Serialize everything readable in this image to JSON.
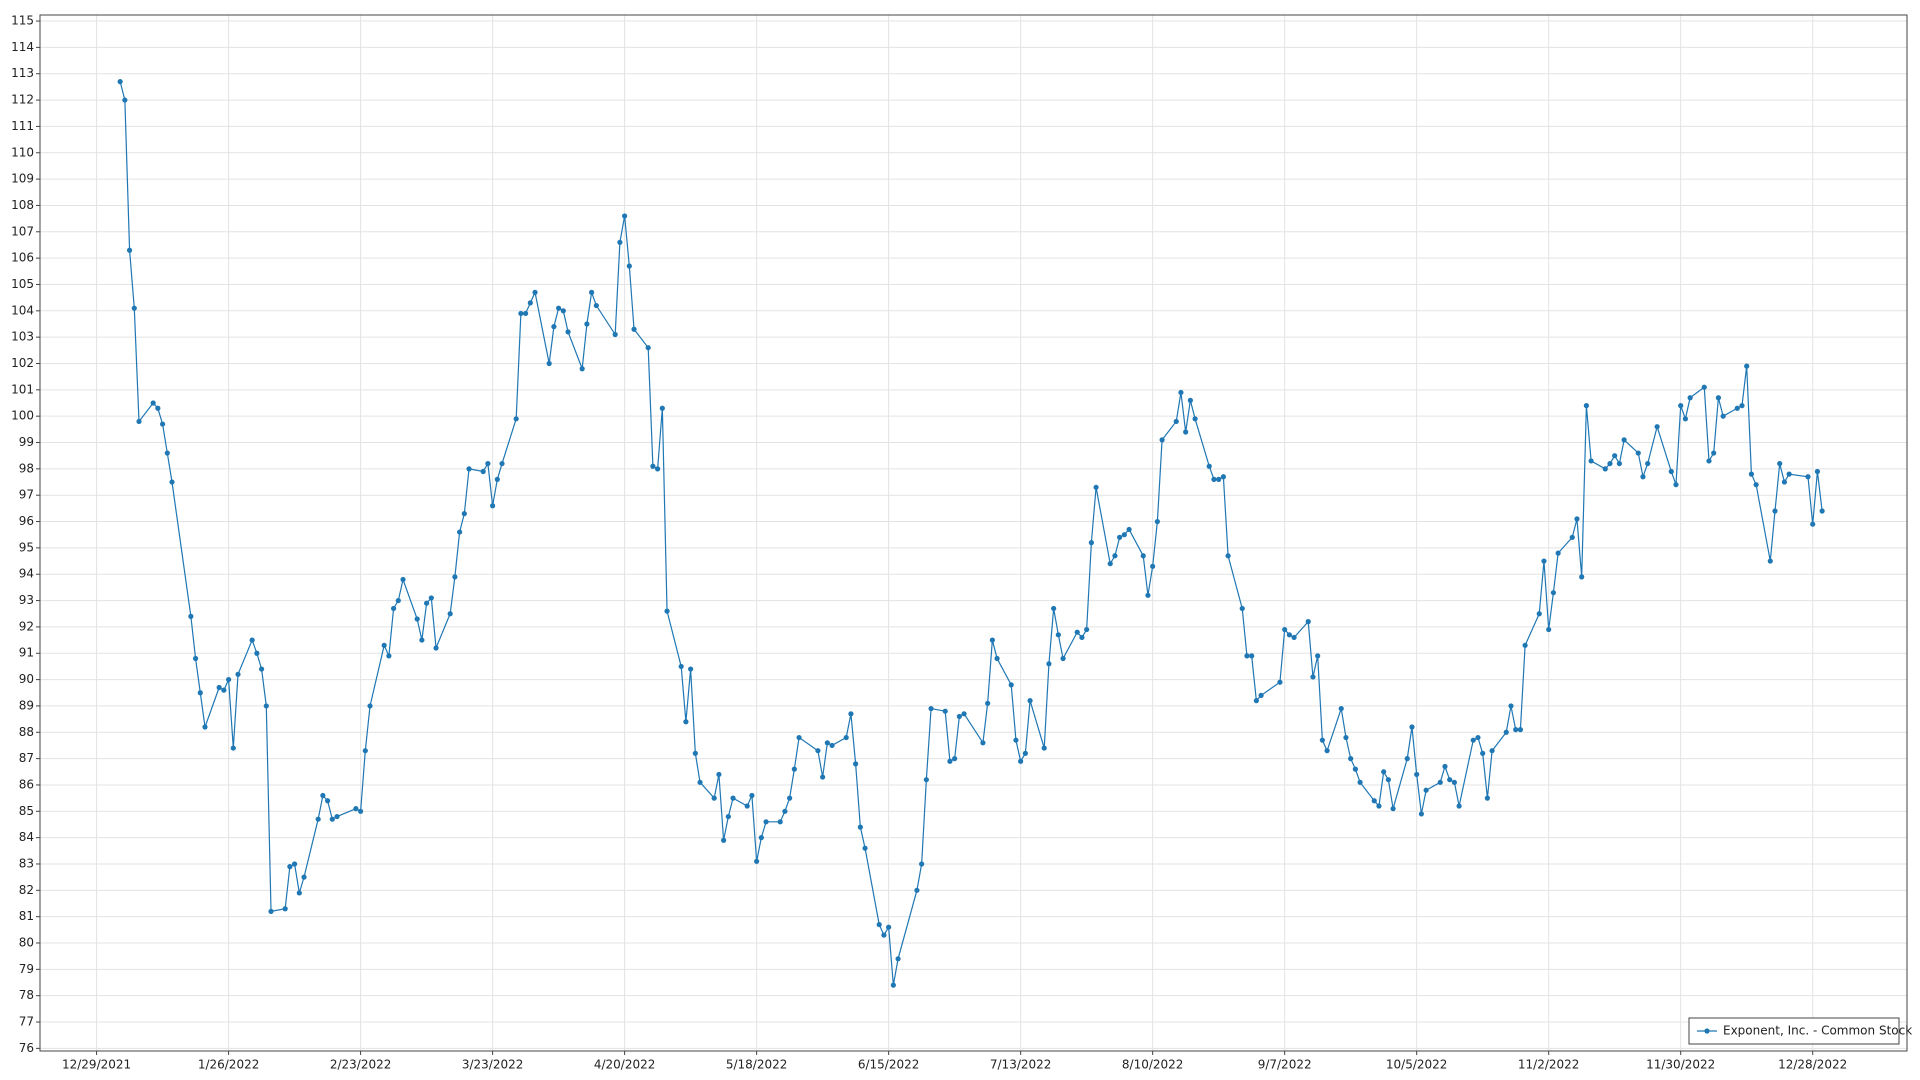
{
  "chart_data": {
    "type": "line",
    "x": [
      "1/3/2022",
      "1/4/2022",
      "1/5/2022",
      "1/6/2022",
      "1/7/2022",
      "1/10/2022",
      "1/11/2022",
      "1/12/2022",
      "1/13/2022",
      "1/14/2022",
      "1/18/2022",
      "1/19/2022",
      "1/20/2022",
      "1/21/2022",
      "1/24/2022",
      "1/25/2022",
      "1/26/2022",
      "1/27/2022",
      "1/28/2022",
      "1/31/2022",
      "2/1/2022",
      "2/2/2022",
      "2/3/2022",
      "2/4/2022",
      "2/7/2022",
      "2/8/2022",
      "2/9/2022",
      "2/10/2022",
      "2/11/2022",
      "2/14/2022",
      "2/15/2022",
      "2/16/2022",
      "2/17/2022",
      "2/18/2022",
      "2/22/2022",
      "2/23/2022",
      "2/24/2022",
      "2/25/2022",
      "2/28/2022",
      "3/1/2022",
      "3/2/2022",
      "3/3/2022",
      "3/4/2022",
      "3/7/2022",
      "3/8/2022",
      "3/9/2022",
      "3/10/2022",
      "3/11/2022",
      "3/14/2022",
      "3/15/2022",
      "3/16/2022",
      "3/17/2022",
      "3/18/2022",
      "3/21/2022",
      "3/22/2022",
      "3/23/2022",
      "3/24/2022",
      "3/25/2022",
      "3/28/2022",
      "3/29/2022",
      "3/30/2022",
      "3/31/2022",
      "4/1/2022",
      "4/4/2022",
      "4/5/2022",
      "4/6/2022",
      "4/7/2022",
      "4/8/2022",
      "4/11/2022",
      "4/12/2022",
      "4/13/2022",
      "4/14/2022",
      "4/18/2022",
      "4/19/2022",
      "4/20/2022",
      "4/21/2022",
      "4/22/2022",
      "4/25/2022",
      "4/26/2022",
      "4/27/2022",
      "4/28/2022",
      "4/29/2022",
      "5/2/2022",
      "5/3/2022",
      "5/4/2022",
      "5/5/2022",
      "5/6/2022",
      "5/9/2022",
      "5/10/2022",
      "5/11/2022",
      "5/12/2022",
      "5/13/2022",
      "5/16/2022",
      "5/17/2022",
      "5/18/2022",
      "5/19/2022",
      "5/20/2022",
      "5/23/2022",
      "5/24/2022",
      "5/25/2022",
      "5/26/2022",
      "5/27/2022",
      "5/31/2022",
      "6/1/2022",
      "6/2/2022",
      "6/3/2022",
      "6/6/2022",
      "6/7/2022",
      "6/8/2022",
      "6/9/2022",
      "6/10/2022",
      "6/13/2022",
      "6/14/2022",
      "6/15/2022",
      "6/16/2022",
      "6/17/2022",
      "6/21/2022",
      "6/22/2022",
      "6/23/2022",
      "6/24/2022",
      "6/27/2022",
      "6/28/2022",
      "6/29/2022",
      "6/30/2022",
      "7/1/2022",
      "7/5/2022",
      "7/6/2022",
      "7/7/2022",
      "7/8/2022",
      "7/11/2022",
      "7/12/2022",
      "7/13/2022",
      "7/14/2022",
      "7/15/2022",
      "7/18/2022",
      "7/19/2022",
      "7/20/2022",
      "7/21/2022",
      "7/22/2022",
      "7/25/2022",
      "7/26/2022",
      "7/27/2022",
      "7/28/2022",
      "7/29/2022",
      "8/1/2022",
      "8/2/2022",
      "8/3/2022",
      "8/4/2022",
      "8/5/2022",
      "8/8/2022",
      "8/9/2022",
      "8/10/2022",
      "8/11/2022",
      "8/12/2022",
      "8/15/2022",
      "8/16/2022",
      "8/17/2022",
      "8/18/2022",
      "8/19/2022",
      "8/22/2022",
      "8/23/2022",
      "8/24/2022",
      "8/25/2022",
      "8/26/2022",
      "8/29/2022",
      "8/30/2022",
      "8/31/2022",
      "9/1/2022",
      "9/2/2022",
      "9/6/2022",
      "9/7/2022",
      "9/8/2022",
      "9/9/2022",
      "9/12/2022",
      "9/13/2022",
      "9/14/2022",
      "9/15/2022",
      "9/16/2022",
      "9/19/2022",
      "9/20/2022",
      "9/21/2022",
      "9/22/2022",
      "9/23/2022",
      "9/26/2022",
      "9/27/2022",
      "9/28/2022",
      "9/29/2022",
      "9/30/2022",
      "10/3/2022",
      "10/4/2022",
      "10/5/2022",
      "10/6/2022",
      "10/7/2022",
      "10/10/2022",
      "10/11/2022",
      "10/12/2022",
      "10/13/2022",
      "10/14/2022",
      "10/17/2022",
      "10/18/2022",
      "10/19/2022",
      "10/20/2022",
      "10/21/2022",
      "10/24/2022",
      "10/25/2022",
      "10/26/2022",
      "10/27/2022",
      "10/28/2022",
      "10/31/2022",
      "11/1/2022",
      "11/2/2022",
      "11/3/2022",
      "11/4/2022",
      "11/7/2022",
      "11/8/2022",
      "11/9/2022",
      "11/10/2022",
      "11/11/2022",
      "11/14/2022",
      "11/15/2022",
      "11/16/2022",
      "11/17/2022",
      "11/18/2022",
      "11/21/2022",
      "11/22/2022",
      "11/23/2022",
      "11/25/2022",
      "11/28/2022",
      "11/29/2022",
      "11/30/2022",
      "12/1/2022",
      "12/2/2022",
      "12/5/2022",
      "12/6/2022",
      "12/7/2022",
      "12/8/2022",
      "12/9/2022",
      "12/12/2022",
      "12/13/2022",
      "12/14/2022",
      "12/15/2022",
      "12/16/2022",
      "12/19/2022",
      "12/20/2022",
      "12/21/2022",
      "12/22/2022",
      "12/23/2022",
      "12/27/2022",
      "12/28/2022",
      "12/29/2022",
      "12/30/2022"
    ],
    "series": [
      {
        "name": "Exponent, Inc. - Common Stock",
        "color": "#1f77b4",
        "values": [
          112.7,
          112.0,
          106.3,
          104.1,
          99.8,
          100.5,
          100.3,
          99.7,
          98.6,
          97.5,
          92.4,
          90.8,
          89.5,
          88.2,
          89.7,
          89.6,
          90.0,
          87.4,
          90.2,
          91.5,
          91.0,
          90.4,
          89.0,
          81.2,
          81.3,
          82.9,
          83.0,
          81.9,
          82.5,
          84.7,
          85.6,
          85.4,
          84.7,
          84.8,
          85.1,
          85.0,
          87.3,
          89.0,
          91.3,
          90.9,
          92.7,
          93.0,
          93.8,
          92.3,
          91.5,
          92.9,
          93.1,
          91.2,
          92.5,
          93.9,
          95.6,
          96.3,
          98.0,
          97.9,
          98.2,
          96.6,
          97.6,
          98.2,
          99.9,
          103.9,
          103.9,
          104.3,
          104.7,
          102.0,
          103.4,
          104.1,
          104.0,
          103.2,
          101.8,
          103.5,
          104.7,
          104.2,
          103.1,
          106.6,
          107.6,
          105.7,
          103.3,
          102.6,
          98.1,
          98.0,
          100.3,
          92.6,
          90.5,
          88.4,
          90.4,
          87.2,
          86.1,
          85.5,
          86.4,
          83.9,
          84.8,
          85.5,
          85.2,
          85.6,
          83.1,
          84.0,
          84.6,
          84.6,
          85.0,
          85.5,
          86.6,
          87.8,
          87.3,
          86.3,
          87.6,
          87.5,
          87.8,
          88.7,
          86.8,
          84.4,
          83.6,
          80.7,
          80.3,
          80.6,
          78.4,
          79.4,
          82.0,
          83.0,
          86.2,
          88.9,
          88.8,
          86.9,
          87.0,
          88.6,
          88.7,
          87.6,
          89.1,
          91.5,
          90.8,
          89.8,
          87.7,
          86.9,
          87.2,
          89.2,
          87.4,
          90.6,
          92.7,
          91.7,
          90.8,
          91.8,
          91.6,
          91.9,
          95.2,
          97.3,
          94.4,
          94.7,
          95.4,
          95.5,
          95.7,
          94.7,
          93.2,
          94.3,
          96.0,
          99.1,
          99.8,
          100.9,
          99.4,
          100.6,
          99.9,
          98.1,
          97.6,
          97.6,
          97.7,
          94.7,
          92.7,
          90.9,
          90.9,
          89.2,
          89.4,
          89.9,
          91.9,
          91.7,
          91.6,
          92.2,
          90.1,
          90.9,
          87.7,
          87.3,
          88.9,
          87.8,
          87.0,
          86.6,
          86.1,
          85.4,
          85.2,
          86.5,
          86.2,
          85.1,
          87.0,
          88.2,
          86.4,
          84.9,
          85.8,
          86.1,
          86.7,
          86.2,
          86.1,
          85.2,
          87.7,
          87.8,
          87.2,
          85.5,
          87.3,
          88.0,
          89.0,
          88.1,
          88.1,
          91.3,
          92.5,
          94.5,
          91.9,
          93.3,
          94.8,
          95.4,
          96.1,
          93.9,
          100.4,
          98.3,
          98.0,
          98.2,
          98.5,
          98.2,
          99.1,
          98.6,
          97.7,
          98.2,
          99.6,
          97.9,
          97.4,
          100.4,
          99.9,
          100.7,
          101.1,
          98.3,
          98.6,
          100.7,
          100.0,
          100.3,
          100.4,
          101.9,
          97.8,
          97.4,
          94.5,
          96.4,
          98.2,
          97.5,
          97.8,
          97.7,
          95.9,
          97.9,
          96.4
        ]
      }
    ],
    "xlim": [
      "12/17/2021",
      "1/17/2023"
    ],
    "xticks": [
      "12/29/2021",
      "1/26/2022",
      "2/23/2022",
      "3/23/2022",
      "4/20/2022",
      "5/18/2022",
      "6/15/2022",
      "7/13/2022",
      "8/10/2022",
      "9/7/2022",
      "10/5/2022",
      "11/2/2022",
      "11/30/2022",
      "12/28/2022"
    ],
    "ylim": [
      75.9,
      115.23
    ],
    "yticks": [
      76,
      77,
      78,
      79,
      80,
      81,
      82,
      83,
      84,
      85,
      86,
      87,
      88,
      89,
      90,
      91,
      92,
      93,
      94,
      95,
      96,
      97,
      98,
      99,
      100,
      101,
      102,
      103,
      104,
      105,
      106,
      107,
      108,
      109,
      110,
      111,
      112,
      113,
      114,
      115
    ],
    "grid": true,
    "legend": "bottom-right"
  }
}
